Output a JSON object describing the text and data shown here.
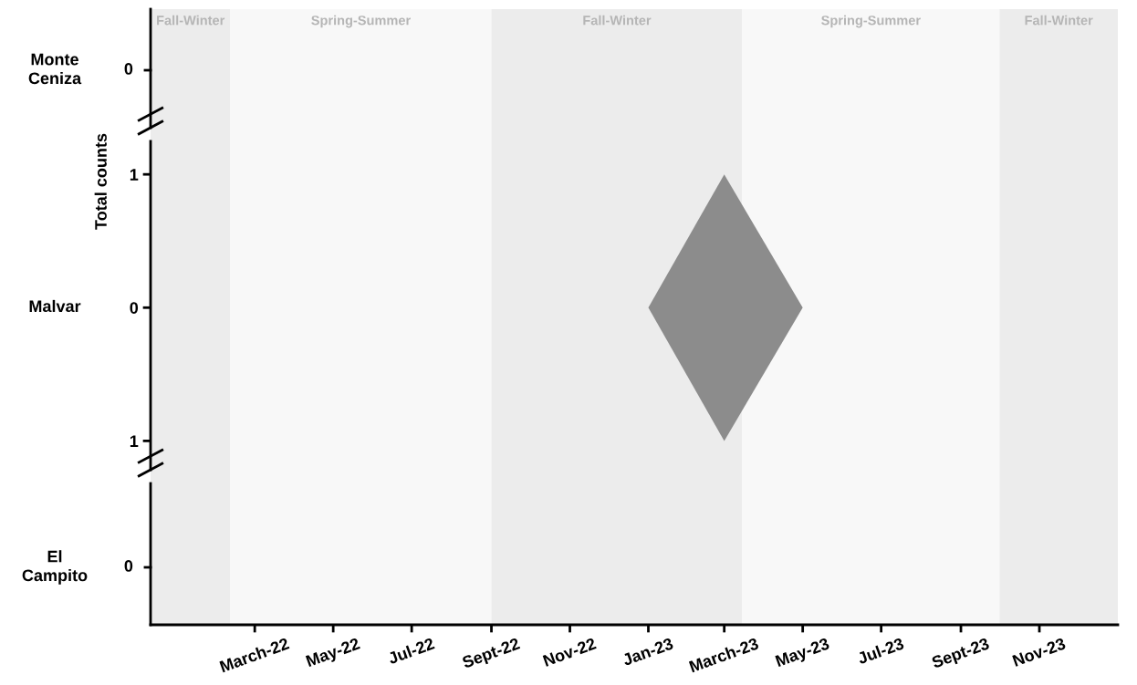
{
  "chart_data": {
    "type": "area",
    "ylabel": "Total counts",
    "xlim": [
      "2021-12-10",
      "2024-01-01"
    ],
    "xticks": [
      {
        "value": "2022-03",
        "label": "March-22"
      },
      {
        "value": "2022-05",
        "label": "May-22"
      },
      {
        "value": "2022-07",
        "label": "Jul-22"
      },
      {
        "value": "2022-09",
        "label": "Sept-22"
      },
      {
        "value": "2022-11",
        "label": "Nov-22"
      },
      {
        "value": "2023-01",
        "label": "Jan-23"
      },
      {
        "value": "2023-03",
        "label": "March-23"
      },
      {
        "value": "2023-05",
        "label": "May-23"
      },
      {
        "value": "2023-07",
        "label": "Jul-23"
      },
      {
        "value": "2023-09",
        "label": "Sept-23"
      },
      {
        "value": "2023-11",
        "label": "Nov-23"
      }
    ],
    "ylim": [
      -2.38,
      2.24
    ],
    "yticks": [
      {
        "value": -1,
        "label": "1"
      },
      0,
      1
    ],
    "bands": [
      {
        "axis": "x",
        "from": "2021-12-10",
        "to": "2022-02-10",
        "label": "Fall-Winter",
        "color": "#ececec"
      },
      {
        "axis": "x",
        "from": "2022-02-10",
        "to": "2022-09-01",
        "label": "Spring-Summer",
        "color": "#f8f8f8"
      },
      {
        "axis": "x",
        "from": "2022-09-01",
        "to": "2023-03-15",
        "label": "Fall-Winter",
        "color": "#ececec"
      },
      {
        "axis": "x",
        "from": "2023-03-15",
        "to": "2023-10-01",
        "label": "Spring-Summer",
        "color": "#f8f8f8"
      },
      {
        "axis": "x",
        "from": "2023-10-01",
        "to": "2024-01-01",
        "label": "Fall-Winter",
        "color": "#ececec"
      }
    ],
    "series": [
      {
        "color": "#8c8c8c",
        "x": [
          "2023-01-01",
          "2023-03-01",
          "2023-05-01",
          "2023-03-01",
          "2023-01-01"
        ],
        "values": [
          0,
          1,
          0,
          -1,
          0
        ]
      }
    ],
    "annotations": [
      "Monte\nCeniza",
      "0",
      "Malvar",
      "El\nCampito",
      "0"
    ]
  }
}
